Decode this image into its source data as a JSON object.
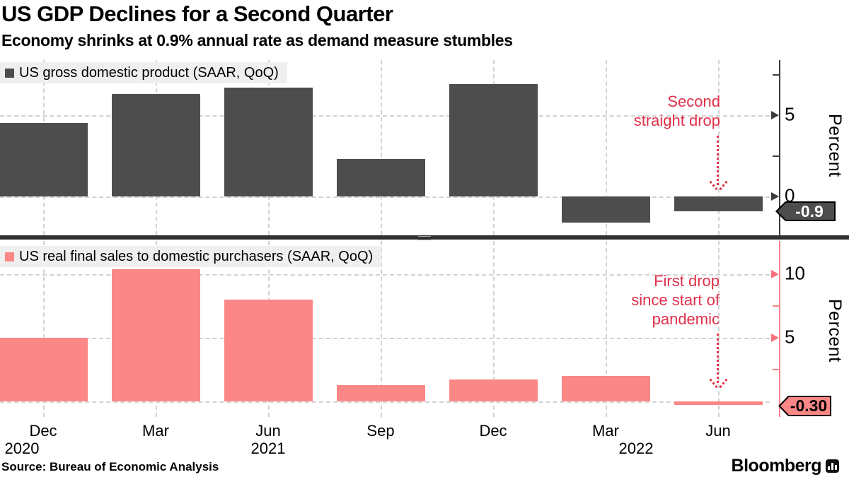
{
  "header": {
    "title": "US GDP Declines for a Second Quarter",
    "subtitle": "Economy shrinks at 0.9% annual rate as demand measure stumbles"
  },
  "source_line": "Source: Bureau of Economic Analysis",
  "brand": {
    "name": "Bloomberg"
  },
  "x_axis": {
    "month_labels": [
      "Dec",
      "Mar",
      "Jun",
      "Sep",
      "Dec",
      "Mar",
      "Jun"
    ],
    "year_labels": [
      "2020",
      "2021",
      "2022"
    ]
  },
  "chart_data": [
    {
      "type": "bar",
      "position": "top",
      "legend": "US gross domestic product (SAAR, QoQ)",
      "categories": [
        "Dec 2020",
        "Mar 2021",
        "Jun 2021",
        "Sep 2021",
        "Dec 2021",
        "Mar 2022",
        "Jun 2022"
      ],
      "values": [
        4.5,
        6.3,
        6.7,
        2.3,
        6.9,
        -1.6,
        -0.9
      ],
      "bar_color": "#4d4d4d",
      "axis_color": "#3d3d3d",
      "arrow_color": "#3d3d3d",
      "ylabel": "Percent",
      "ylim": [
        -2.4,
        8.4
      ],
      "yticks_labeled": [
        0,
        5
      ],
      "yticks_minor": [
        2.5,
        7.5
      ],
      "extra_gridlines": [],
      "grid": "dashed",
      "legend_position": "top-left",
      "annotation": {
        "text": "Second\nstraight drop",
        "color": "#e1304a"
      },
      "last_value_tag": {
        "text": "-0.9",
        "bg": "#4d4d4d",
        "fg": "#ffffff"
      }
    },
    {
      "type": "bar",
      "position": "bottom",
      "legend": "US real final sales to domestic purchasers (SAAR, QoQ)",
      "categories": [
        "Dec 2020",
        "Mar 2021",
        "Jun 2021",
        "Sep 2021",
        "Dec 2021",
        "Mar 2022",
        "Jun 2022"
      ],
      "values": [
        5.0,
        10.4,
        8.0,
        1.3,
        1.7,
        2.0,
        -0.3
      ],
      "bar_color": "#fc8787",
      "axis_color": "#f4828b",
      "arrow_color": "#f4727e",
      "ylabel": "Percent",
      "ylim": [
        -1.2,
        12.2
      ],
      "yticks_labeled": [
        5,
        10
      ],
      "yticks_minor": [
        2.5,
        7.5
      ],
      "extra_gridlines": [
        0
      ],
      "grid": "dashed",
      "legend_position": "top-left",
      "annotation": {
        "text": "First drop\nsince start of\npandemic",
        "color": "#e1304a"
      },
      "last_value_tag": {
        "text": "-0.30",
        "bg": "#fc8787",
        "fg": "#000000"
      }
    }
  ]
}
